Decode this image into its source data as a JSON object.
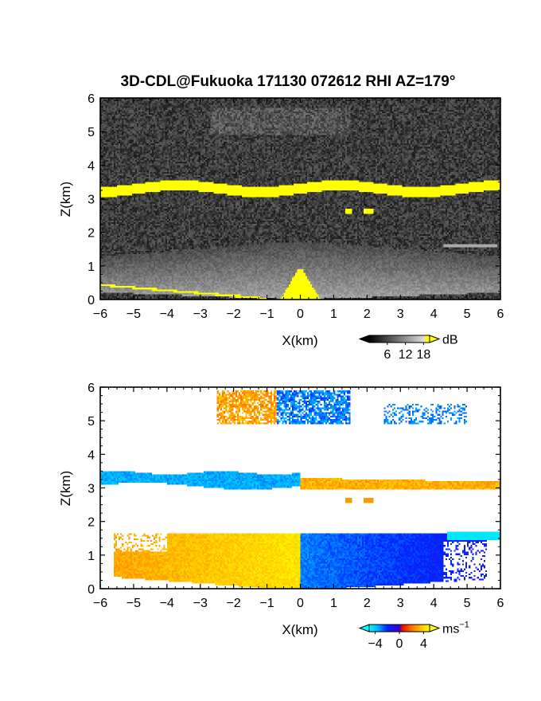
{
  "chart_data": [
    {
      "type": "heatmap",
      "title": "3D-CDL@Fukuoka 171130 072612 RHI AZ=179°",
      "xlabel": "X(km)",
      "ylabel": "Z(km)",
      "xlim": [
        -6,
        6
      ],
      "ylim": [
        0,
        6
      ],
      "xticks": [
        "−6",
        "−5",
        "−4",
        "−3",
        "−2",
        "−1",
        "0",
        "1",
        "2",
        "3",
        "4",
        "5",
        "6"
      ],
      "yticks": [
        "0",
        "1",
        "2",
        "3",
        "4",
        "5",
        "6"
      ],
      "colorbar": {
        "label": "dB",
        "ticks": [
          "6",
          "12",
          "18"
        ],
        "range": [
          0,
          20
        ],
        "colormap": "grayscale-to-yellow"
      },
      "features": [
        {
          "name": "upper cloud",
          "x": [
            -2.7,
            1.5
          ],
          "z": [
            4.9,
            5.7
          ],
          "level_db": 10
        },
        {
          "name": "cloud layer",
          "x": [
            -6,
            6
          ],
          "z": [
            3.0,
            3.45
          ],
          "level_db": 20
        },
        {
          "name": "boundary layer",
          "x": [
            -6,
            6
          ],
          "z": [
            0,
            1.7
          ],
          "level_db": 12
        }
      ],
      "colors": {
        "saturated": "#ffff00",
        "noise": "#2a2a2a"
      }
    },
    {
      "type": "heatmap",
      "title": "",
      "xlabel": "X(km)",
      "ylabel": "Z(km)",
      "xlim": [
        -6,
        6
      ],
      "ylim": [
        0,
        6
      ],
      "xticks": [
        "−6",
        "−5",
        "−4",
        "−3",
        "−2",
        "−1",
        "0",
        "1",
        "2",
        "3",
        "4",
        "5",
        "6"
      ],
      "yticks": [
        "0",
        "1",
        "2",
        "3",
        "4",
        "5",
        "6"
      ],
      "colorbar": {
        "label": "ms",
        "label_sup": "−1",
        "ticks": [
          "−4",
          "0",
          "4"
        ],
        "range": [
          -5,
          5
        ],
        "colormap": "cyan-blue-red-yellow"
      },
      "features": [
        {
          "name": "upper cloud",
          "x": [
            -2.5,
            1.5
          ],
          "z": [
            4.9,
            5.9
          ],
          "velocity": [
            -3,
            3
          ]
        },
        {
          "name": "cloud layer west",
          "x": [
            -6,
            0
          ],
          "z": [
            3.05,
            3.55
          ],
          "velocity": -3
        },
        {
          "name": "cloud layer east",
          "x": [
            0,
            6
          ],
          "z": [
            2.95,
            3.35
          ],
          "velocity": 3
        },
        {
          "name": "boundary layer west",
          "x": [
            -5.5,
            0
          ],
          "z": [
            0,
            1.7
          ],
          "velocity": 3.5
        },
        {
          "name": "boundary layer east",
          "x": [
            0,
            6
          ],
          "z": [
            0,
            1.7
          ],
          "velocity": -3
        }
      ],
      "colors": {
        "negative": "#1e3cff",
        "positive": "#ff7a00",
        "max": "#ffff00",
        "min": "#00ffff"
      }
    }
  ]
}
